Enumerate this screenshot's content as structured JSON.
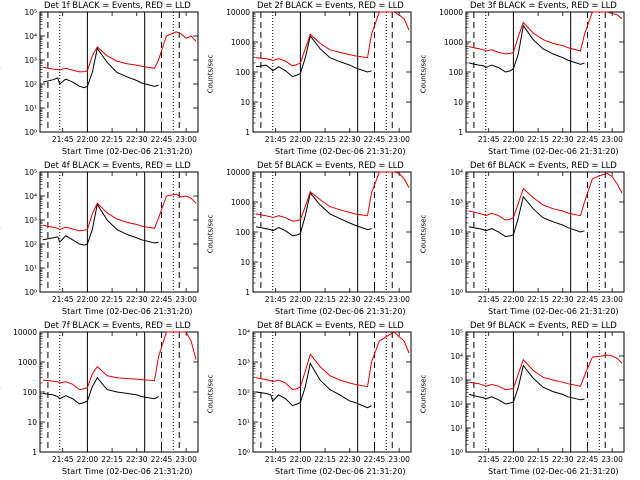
{
  "xlabel": "Start Time (02-Dec-06 21:31:20)",
  "ylabel": "Counts/sec",
  "colors": {
    "events": "#000000",
    "lld": "#e00000"
  },
  "xtick_labels": [
    "21:45",
    "22:00",
    "22:15",
    "22:30",
    "22:45",
    "23:00"
  ],
  "chart_data": [
    {
      "type": "line",
      "title": "Det 1f BLACK = Events, RED = LLD",
      "ylog": true,
      "ytick_style": "exp",
      "ylim_exp": [
        0,
        5
      ],
      "yticks": [
        "10⁰",
        "10¹",
        "10²",
        "10³",
        "10⁴",
        "10⁵"
      ],
      "x": [
        21.55,
        21.65,
        21.7,
        21.72,
        21.78,
        21.85,
        21.92,
        21.97,
        22.0,
        22.05,
        22.1,
        22.2,
        22.3,
        22.4,
        22.5,
        22.55,
        22.68,
        22.72,
        22.8,
        22.9,
        22.95,
        23.0,
        23.05,
        23.1
      ],
      "series": [
        {
          "name": "Events",
          "values": [
            120,
            150,
            180,
            100,
            160,
            120,
            80,
            70,
            80,
            300,
            3000,
            800,
            300,
            200,
            140,
            110,
            80,
            90,
            null,
            null,
            null,
            null,
            null,
            null
          ]
        },
        {
          "name": "LLD",
          "values": [
            500,
            420,
            400,
            380,
            450,
            380,
            320,
            330,
            350,
            1500,
            3500,
            1500,
            900,
            700,
            600,
            550,
            450,
            1000,
            10000,
            15000,
            12000,
            8000,
            10000,
            6000
          ]
        }
      ],
      "vlines_dashed": [
        21.6,
        22.75,
        22.93
      ],
      "vlines_dotted": [
        21.72,
        22.87
      ],
      "vlines_solid": [
        22.0,
        22.58
      ]
    },
    {
      "type": "line",
      "title": "Det 2f BLACK = Events, RED = LLD",
      "ylog": true,
      "ytick_style": "plain",
      "ylim_exp": [
        0,
        4
      ],
      "yticks": [
        "1",
        "10",
        "100",
        "1000",
        "10000"
      ],
      "x": [
        21.55,
        21.65,
        21.7,
        21.72,
        21.78,
        21.85,
        21.92,
        21.97,
        22.0,
        22.05,
        22.1,
        22.2,
        22.3,
        22.4,
        22.5,
        22.55,
        22.68,
        22.72,
        22.8,
        22.9,
        22.95,
        23.0,
        23.05,
        23.1
      ],
      "series": [
        {
          "name": "Events",
          "values": [
            150,
            170,
            130,
            110,
            150,
            110,
            70,
            80,
            90,
            300,
            1600,
            600,
            300,
            220,
            170,
            140,
            100,
            110,
            null,
            null,
            null,
            null,
            null,
            null
          ]
        },
        {
          "name": "LLD",
          "values": [
            300,
            280,
            260,
            240,
            280,
            230,
            160,
            180,
            200,
            600,
            1800,
            900,
            550,
            450,
            380,
            350,
            300,
            1800,
            10000,
            12000,
            10000,
            8000,
            6000,
            2500
          ]
        }
      ],
      "vlines_dashed": [
        21.6,
        22.75,
        22.93
      ],
      "vlines_dotted": [
        21.72,
        22.87
      ],
      "vlines_solid": [
        22.0,
        22.58
      ]
    },
    {
      "type": "line",
      "title": "Det 3f BLACK = Events, RED = LLD",
      "ylog": true,
      "ytick_style": "plain",
      "ylim_exp": [
        0,
        4
      ],
      "yticks": [
        "1",
        "10",
        "100",
        "1000",
        "10000"
      ],
      "x": [
        21.55,
        21.65,
        21.7,
        21.72,
        21.78,
        21.85,
        21.92,
        21.97,
        22.0,
        22.05,
        22.1,
        22.2,
        22.3,
        22.4,
        22.5,
        22.55,
        22.68,
        22.72,
        22.8,
        22.9,
        22.95,
        23.0,
        23.05,
        23.1
      ],
      "series": [
        {
          "name": "Events",
          "values": [
            200,
            170,
            160,
            140,
            170,
            140,
            100,
            110,
            130,
            400,
            3500,
            1200,
            600,
            400,
            300,
            250,
            180,
            200,
            null,
            null,
            null,
            null,
            null,
            null
          ]
        },
        {
          "name": "LLD",
          "values": [
            700,
            600,
            550,
            500,
            550,
            450,
            400,
            420,
            450,
            1500,
            4500,
            2000,
            1200,
            900,
            750,
            650,
            500,
            1800,
            10000,
            12000,
            10000,
            9000,
            8000,
            6000
          ]
        }
      ],
      "vlines_dashed": [
        21.6,
        22.75,
        22.93
      ],
      "vlines_dotted": [
        21.72,
        22.87
      ],
      "vlines_solid": [
        22.0,
        22.58
      ]
    },
    {
      "type": "line",
      "title": "Det 4f BLACK = Events, RED = LLD",
      "ylog": true,
      "ytick_style": "exp",
      "ylim_exp": [
        0,
        5
      ],
      "yticks": [
        "10⁰",
        "10¹",
        "10²",
        "10³",
        "10⁴",
        "10⁵"
      ],
      "x": [
        21.55,
        21.65,
        21.7,
        21.72,
        21.78,
        21.85,
        21.92,
        21.97,
        22.0,
        22.05,
        22.1,
        22.2,
        22.3,
        22.4,
        22.5,
        22.55,
        22.68,
        22.72,
        22.8,
        22.9,
        22.95,
        23.0,
        23.05,
        23.1
      ],
      "series": [
        {
          "name": "Events",
          "values": [
            150,
            180,
            200,
            120,
            220,
            150,
            100,
            90,
            100,
            400,
            4500,
            1000,
            400,
            250,
            180,
            150,
            110,
            120,
            null,
            null,
            null,
            null,
            null,
            null
          ]
        },
        {
          "name": "LLD",
          "values": [
            600,
            500,
            450,
            400,
            500,
            420,
            350,
            380,
            400,
            1800,
            5000,
            2000,
            1100,
            800,
            650,
            550,
            450,
            1200,
            10000,
            12000,
            9000,
            10000,
            8000,
            5000
          ]
        }
      ],
      "vlines_dashed": [
        21.6,
        22.75,
        22.93
      ],
      "vlines_dotted": [
        21.72,
        22.87
      ],
      "vlines_solid": [
        22.0,
        22.58
      ]
    },
    {
      "type": "line",
      "title": "Det 5f BLACK = Events, RED = LLD",
      "ylog": true,
      "ytick_style": "plain",
      "ylim_exp": [
        0,
        4
      ],
      "yticks": [
        "1",
        "10",
        "100",
        "1000",
        "10000"
      ],
      "x": [
        21.55,
        21.65,
        21.7,
        21.72,
        21.78,
        21.85,
        21.92,
        21.97,
        22.0,
        22.05,
        22.1,
        22.2,
        22.3,
        22.4,
        22.5,
        22.55,
        22.68,
        22.72,
        22.8,
        22.9,
        22.95,
        23.0,
        23.05,
        23.1
      ],
      "series": [
        {
          "name": "Events",
          "values": [
            150,
            130,
            120,
            110,
            140,
            110,
            75,
            80,
            90,
            350,
            2000,
            800,
            400,
            280,
            200,
            170,
            120,
            130,
            null,
            null,
            null,
            null,
            null,
            null
          ]
        },
        {
          "name": "LLD",
          "values": [
            400,
            350,
            320,
            300,
            350,
            300,
            230,
            240,
            260,
            700,
            2200,
            1200,
            700,
            550,
            450,
            400,
            350,
            2000,
            10000,
            11000,
            10000,
            9000,
            6000,
            3000
          ]
        }
      ],
      "vlines_dashed": [
        21.6,
        22.75,
        22.93
      ],
      "vlines_dotted": [
        21.72,
        22.87
      ],
      "vlines_solid": [
        22.0,
        22.58
      ]
    },
    {
      "type": "line",
      "title": "Det 6f BLACK = Events, RED = LLD",
      "ylog": true,
      "ytick_style": "exp",
      "ylim_exp": [
        0,
        4
      ],
      "yticks": [
        "10⁰",
        "10¹",
        "10²",
        "10³",
        "10⁴"
      ],
      "x": [
        21.55,
        21.65,
        21.7,
        21.72,
        21.78,
        21.85,
        21.92,
        21.97,
        22.0,
        22.05,
        22.1,
        22.2,
        22.3,
        22.4,
        22.5,
        22.55,
        22.68,
        22.72,
        22.8,
        22.9,
        22.95,
        23.0,
        23.05,
        23.1
      ],
      "series": [
        {
          "name": "Events",
          "values": [
            150,
            130,
            120,
            110,
            130,
            100,
            70,
            75,
            80,
            300,
            1500,
            600,
            300,
            220,
            170,
            140,
            100,
            110,
            null,
            null,
            null,
            null,
            null,
            null
          ]
        },
        {
          "name": "LLD",
          "values": [
            500,
            420,
            380,
            350,
            420,
            350,
            250,
            270,
            300,
            900,
            2800,
            1400,
            800,
            600,
            500,
            430,
            350,
            1000,
            6000,
            8000,
            9000,
            7000,
            4000,
            2000
          ]
        }
      ],
      "vlines_dashed": [
        21.6,
        22.75,
        22.93
      ],
      "vlines_dotted": [
        21.72,
        22.87
      ],
      "vlines_solid": [
        22.0,
        22.58
      ]
    },
    {
      "type": "line",
      "title": "Det 7f BLACK = Events, RED = LLD",
      "ylog": true,
      "ytick_style": "plain",
      "ylim_exp": [
        0,
        4
      ],
      "yticks": [
        "1",
        "10",
        "100",
        "1000",
        "10000"
      ],
      "x": [
        21.55,
        21.65,
        21.7,
        21.72,
        21.78,
        21.85,
        21.92,
        21.97,
        22.0,
        22.05,
        22.1,
        22.2,
        22.3,
        22.4,
        22.5,
        22.55,
        22.68,
        22.72,
        22.8,
        22.9,
        22.95,
        23.0,
        23.05,
        23.1
      ],
      "series": [
        {
          "name": "Events",
          "values": [
            90,
            80,
            70,
            60,
            75,
            60,
            40,
            45,
            50,
            150,
            300,
            120,
            100,
            90,
            80,
            70,
            60,
            70,
            null,
            null,
            null,
            null,
            null,
            null
          ]
        },
        {
          "name": "LLD",
          "values": [
            250,
            230,
            220,
            200,
            220,
            180,
            120,
            130,
            140,
            400,
            700,
            350,
            300,
            280,
            270,
            260,
            240,
            1500,
            10000,
            15000,
            12000,
            10000,
            5000,
            1200
          ]
        }
      ],
      "vlines_dashed": [
        21.6,
        22.75,
        22.93
      ],
      "vlines_dotted": [
        21.72,
        22.87
      ],
      "vlines_solid": [
        22.0,
        22.58
      ]
    },
    {
      "type": "line",
      "title": "Det 8f BLACK = Events, RED = LLD",
      "ylog": true,
      "ytick_style": "exp",
      "ylim_exp": [
        0,
        4
      ],
      "yticks": [
        "10⁰",
        "10¹",
        "10²",
        "10³",
        "10⁴"
      ],
      "x": [
        21.55,
        21.65,
        21.7,
        21.72,
        21.78,
        21.85,
        21.92,
        21.97,
        22.0,
        22.05,
        22.1,
        22.2,
        22.3,
        22.4,
        22.5,
        22.55,
        22.68,
        22.72,
        22.8,
        22.9,
        22.95,
        23.0,
        23.05,
        23.1
      ],
      "series": [
        {
          "name": "Events",
          "values": [
            100,
            90,
            80,
            50,
            80,
            60,
            35,
            40,
            45,
            150,
            900,
            250,
            120,
            80,
            50,
            45,
            30,
            35,
            null,
            null,
            null,
            null,
            null,
            null
          ]
        },
        {
          "name": "LLD",
          "values": [
            300,
            260,
            240,
            220,
            250,
            200,
            120,
            130,
            150,
            500,
            1800,
            700,
            350,
            250,
            200,
            180,
            150,
            1000,
            5000,
            8000,
            10000,
            7000,
            5000,
            2000
          ]
        }
      ],
      "vlines_dashed": [
        21.6,
        22.75,
        22.93
      ],
      "vlines_dotted": [
        21.72,
        22.87
      ],
      "vlines_solid": [
        22.0,
        22.58
      ]
    },
    {
      "type": "line",
      "title": "Det 9f BLACK = Events, RED = LLD",
      "ylog": true,
      "ytick_style": "exp",
      "ylim_exp": [
        0,
        5
      ],
      "yticks": [
        "10⁰",
        "10¹",
        "10²",
        "10³",
        "10⁴",
        "10⁵"
      ],
      "x": [
        21.55,
        21.65,
        21.7,
        21.72,
        21.78,
        21.85,
        21.92,
        21.97,
        22.0,
        22.05,
        22.1,
        22.2,
        22.3,
        22.4,
        22.5,
        22.55,
        22.68,
        22.72,
        22.8,
        22.9,
        22.95,
        23.0,
        23.05,
        23.1
      ],
      "series": [
        {
          "name": "Events",
          "values": [
            250,
            200,
            180,
            160,
            200,
            150,
            100,
            110,
            120,
            500,
            4000,
            1200,
            500,
            330,
            250,
            200,
            150,
            160,
            null,
            null,
            null,
            null,
            null,
            null
          ]
        },
        {
          "name": "LLD",
          "values": [
            800,
            700,
            600,
            550,
            650,
            550,
            400,
            420,
            450,
            1800,
            7000,
            2500,
            1300,
            1000,
            800,
            700,
            550,
            1500,
            9000,
            10000,
            11000,
            10000,
            8000,
            5000
          ]
        }
      ],
      "vlines_dashed": [
        21.6,
        22.75,
        22.93
      ],
      "vlines_dotted": [
        21.72,
        22.87
      ],
      "vlines_solid": [
        22.0,
        22.58
      ]
    }
  ]
}
